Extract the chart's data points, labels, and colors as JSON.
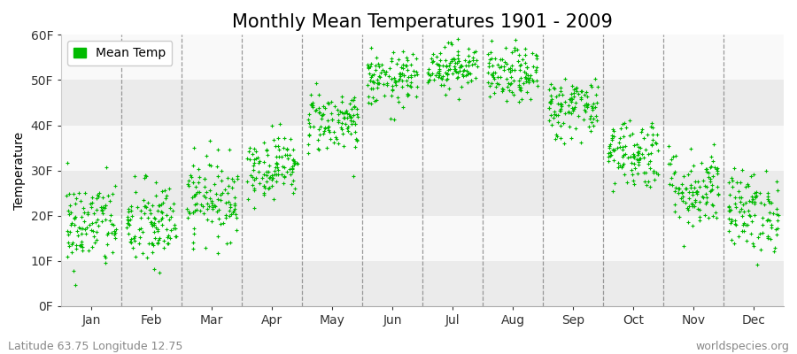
{
  "title": "Monthly Mean Temperatures 1901 - 2009",
  "ylabel": "Temperature",
  "xlabel_months": [
    "Jan",
    "Feb",
    "Mar",
    "Apr",
    "May",
    "Jun",
    "Jul",
    "Aug",
    "Sep",
    "Oct",
    "Nov",
    "Dec"
  ],
  "ytick_labels": [
    "0F",
    "10F",
    "20F",
    "30F",
    "40F",
    "50F",
    "60F"
  ],
  "ytick_values": [
    0,
    10,
    20,
    30,
    40,
    50,
    60
  ],
  "ylim": [
    0,
    60
  ],
  "dot_color": "#00bb00",
  "dot_size": 8,
  "background_color": "#f4f4f4",
  "band_colors": [
    "#ebebeb",
    "#f9f9f9"
  ],
  "legend_label": "Mean Temp",
  "footer_left": "Latitude 63.75 Longitude 12.75",
  "footer_right": "worldspecies.org",
  "title_fontsize": 15,
  "axis_fontsize": 10,
  "footer_fontsize": 9,
  "num_years": 109,
  "seed": 42,
  "realistic_means": [
    18,
    18,
    24,
    31,
    41,
    50,
    53,
    51,
    44,
    34,
    26,
    21
  ],
  "realistic_stds": [
    5.0,
    5.0,
    4.5,
    3.5,
    3.5,
    3.0,
    2.5,
    3.0,
    3.5,
    4.0,
    4.5,
    4.5
  ]
}
